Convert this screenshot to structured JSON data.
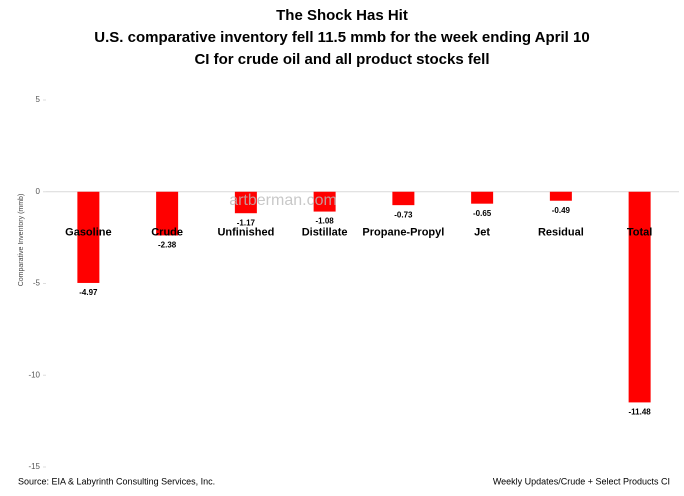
{
  "chart_data": {
    "type": "bar",
    "title": [
      "The Shock Has Hit",
      "U.S. comparative inventory fell 11.5 mmb for the week ending April 10",
      "CI for crude oil and all product stocks  fell"
    ],
    "y_label": "Comparative Inventory (mmb)",
    "categories": [
      "Gasoline",
      "Crude",
      "Unfinished",
      "Distillate",
      "Propane-Propyl",
      "Jet",
      "Residual",
      "Total"
    ],
    "values": [
      -4.97,
      -2.38,
      -1.17,
      -1.08,
      -0.73,
      -0.65,
      -0.49,
      -11.48
    ],
    "color": "#ff0000",
    "ylim": [
      -15,
      5
    ],
    "yticks": [
      5,
      0,
      -5,
      -10,
      -15
    ],
    "watermark": "artberman.com",
    "source": "Source:  EIA & Labyrinth Consulting Services, Inc.",
    "note": "Weekly Updates/Crude + Select Products CI"
  }
}
